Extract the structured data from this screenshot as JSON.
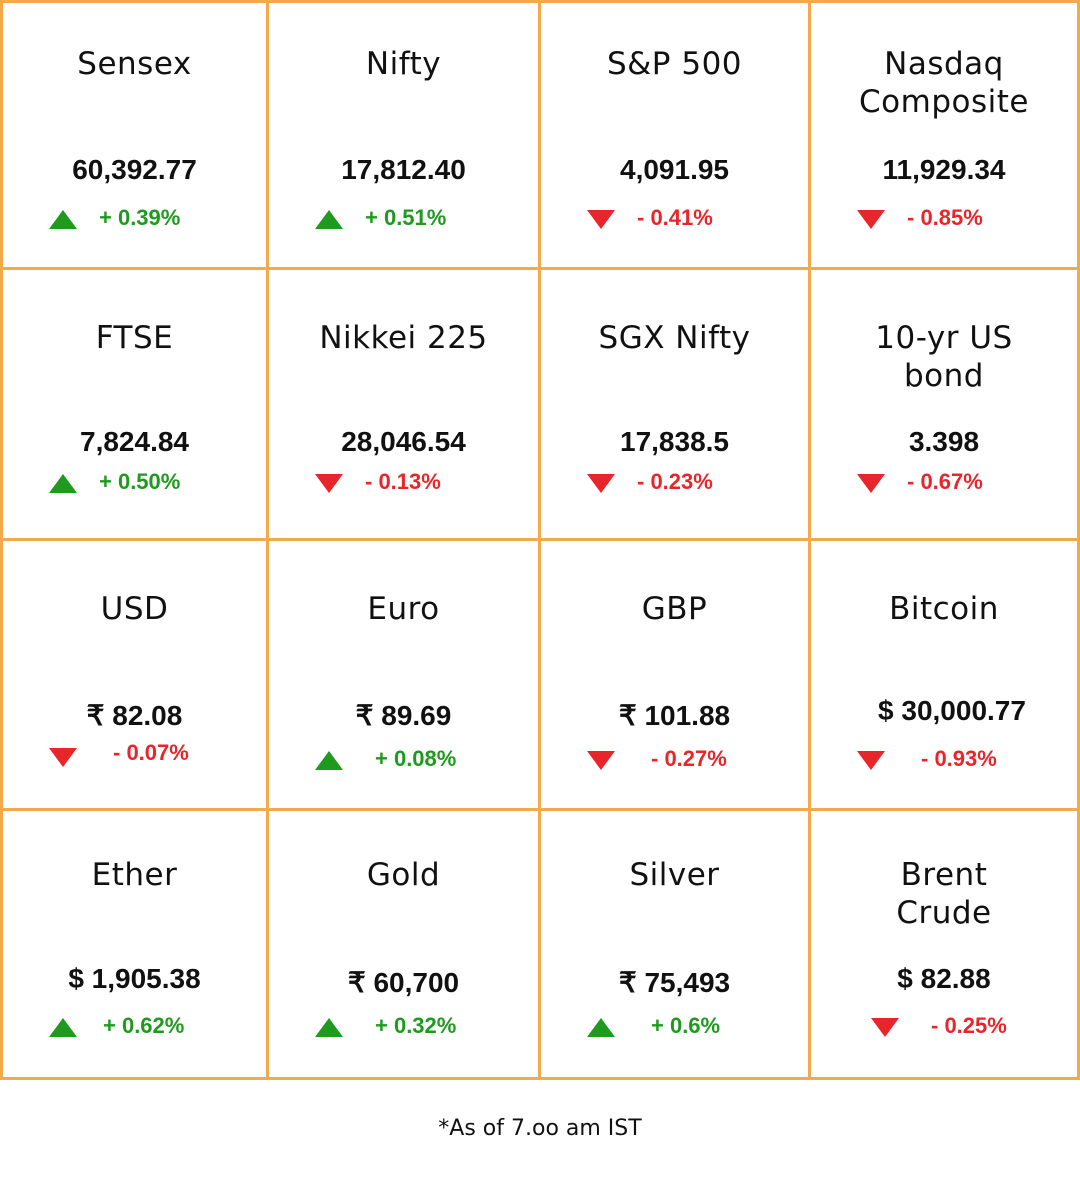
{
  "accent_color": "#F2AA4C",
  "up_color": "#1E9A1E",
  "down_color": "#E8262A",
  "cells": [
    {
      "name": "Sensex",
      "value": "60,392.77",
      "change": "+ 0.39%",
      "direction": "up",
      "icon": "triangle-up-icon"
    },
    {
      "name": "Nifty",
      "value": "17,812.40",
      "change": "+ 0.51%",
      "direction": "up",
      "icon": "triangle-up-icon"
    },
    {
      "name": "S&P 500",
      "value": "4,091.95",
      "change": "- 0.41%",
      "direction": "down",
      "icon": "triangle-down-icon"
    },
    {
      "name": "Nasdaq Composite",
      "value": "11,929.34",
      "change": "- 0.85%",
      "direction": "down",
      "icon": "triangle-down-icon"
    },
    {
      "name": "FTSE",
      "value": "7,824.84",
      "change": "+ 0.50%",
      "direction": "up",
      "icon": "triangle-up-icon"
    },
    {
      "name": "Nikkei 225",
      "value": "28,046.54",
      "change": "- 0.13%",
      "direction": "down",
      "icon": "triangle-down-icon"
    },
    {
      "name": "SGX Nifty",
      "value": "17,838.5",
      "change": "- 0.23%",
      "direction": "down",
      "icon": "triangle-down-icon"
    },
    {
      "name": "10-yr US bond",
      "value": "3.398",
      "change": "- 0.67%",
      "direction": "down",
      "icon": "triangle-down-icon"
    },
    {
      "name": "USD",
      "value": "₹ 82.08",
      "change": "- 0.07%",
      "direction": "down",
      "icon": "triangle-down-icon"
    },
    {
      "name": "Euro",
      "value": "₹ 89.69",
      "change": "+ 0.08%",
      "direction": "up",
      "icon": "triangle-up-icon"
    },
    {
      "name": "GBP",
      "value": "₹ 101.88",
      "change": "- 0.27%",
      "direction": "down",
      "icon": "triangle-down-icon"
    },
    {
      "name": "Bitcoin",
      "value": "$ 30,000.77",
      "change": "- 0.93%",
      "direction": "down",
      "icon": "triangle-down-icon"
    },
    {
      "name": "Ether",
      "value": "$ 1,905.38",
      "change": "+ 0.62%",
      "direction": "up",
      "icon": "triangle-up-icon"
    },
    {
      "name": "Gold",
      "value": "₹ 60,700",
      "change": "+ 0.32%",
      "direction": "up",
      "icon": "triangle-up-icon"
    },
    {
      "name": "Silver",
      "value": "₹ 75,493",
      "change": "+ 0.6%",
      "direction": "up",
      "icon": "triangle-up-icon"
    },
    {
      "name": "Brent Crude",
      "value": "$ 82.88",
      "change": "- 0.25%",
      "direction": "down",
      "icon": "triangle-down-icon"
    }
  ],
  "footnote": "*As of 7.oo  am IST"
}
